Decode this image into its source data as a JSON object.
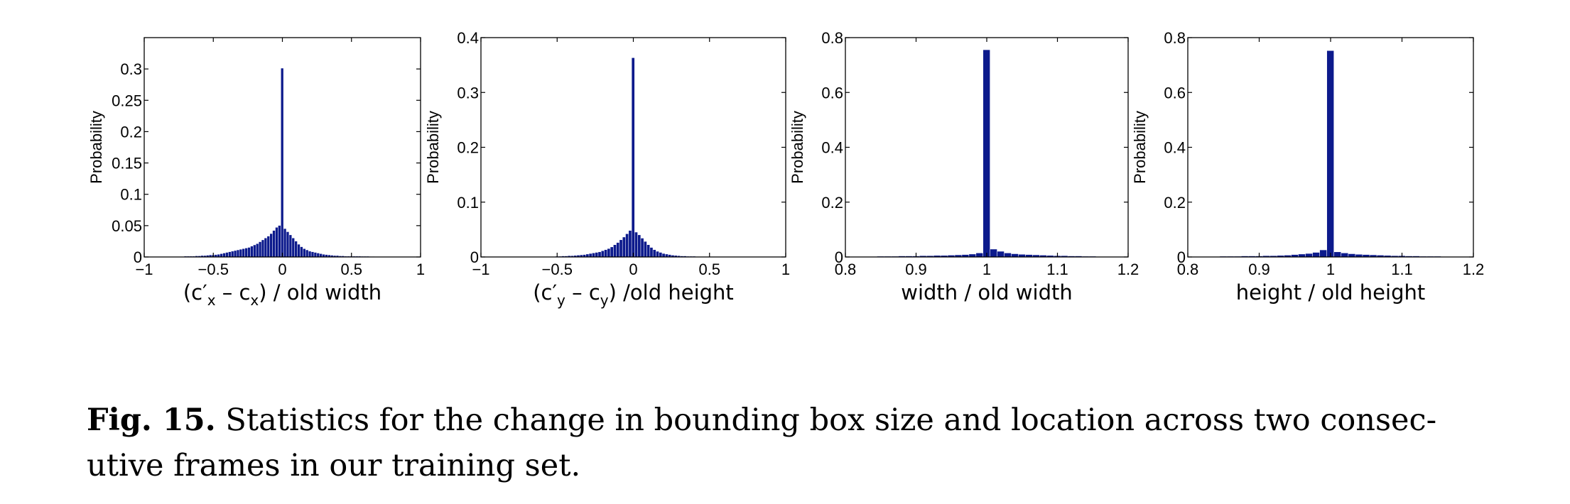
{
  "colors": {
    "bar": "#0c1a8c",
    "axis": "#000000",
    "background": "#ffffff"
  },
  "caption": {
    "label": "Fig. 15.",
    "text": "Statistics for the change in bounding box size and location across two consec-utive frames in our training set."
  },
  "chart_data": [
    {
      "type": "bar",
      "ylabel": "Probability",
      "xlabel": {
        "pre": "(c′",
        "sub1": "x",
        "mid": " – c",
        "sub2": "x",
        "post": ") / old width"
      },
      "xlim": [
        -1,
        1
      ],
      "ylim": [
        0,
        0.35
      ],
      "xticks": [
        "−1",
        "−0.5",
        "0",
        "0.5",
        "1"
      ],
      "xtick_values": [
        -1,
        -0.5,
        0,
        0.5,
        1
      ],
      "yticks": [
        "0",
        "0.05",
        "0.1",
        "0.15",
        "0.2",
        "0.25",
        "0.3"
      ],
      "ytick_values": [
        0,
        0.05,
        0.1,
        0.15,
        0.2,
        0.25,
        0.3
      ],
      "bin_width": 0.02,
      "x": [
        -0.7,
        -0.68,
        -0.66,
        -0.64,
        -0.62,
        -0.6,
        -0.58,
        -0.56,
        -0.54,
        -0.52,
        -0.5,
        -0.48,
        -0.46,
        -0.44,
        -0.42,
        -0.4,
        -0.38,
        -0.36,
        -0.34,
        -0.32,
        -0.3,
        -0.28,
        -0.26,
        -0.24,
        -0.22,
        -0.2,
        -0.18,
        -0.16,
        -0.14,
        -0.12,
        -0.1,
        -0.08,
        -0.06,
        -0.04,
        -0.02,
        0,
        0.02,
        0.04,
        0.06,
        0.08,
        0.1,
        0.12,
        0.14,
        0.16,
        0.18,
        0.2,
        0.22,
        0.24,
        0.26,
        0.28,
        0.3,
        0.32,
        0.34,
        0.36,
        0.38,
        0.4,
        0.42,
        0.44,
        0.46,
        0.48,
        0.5,
        0.52,
        0.54,
        0.56,
        0.58,
        0.6,
        0.62,
        0.64,
        0.66,
        0.68,
        0.7
      ],
      "values": [
        0.001,
        0.001,
        0.001,
        0.001,
        0.0015,
        0.0015,
        0.002,
        0.002,
        0.0025,
        0.003,
        0.003,
        0.0035,
        0.004,
        0.005,
        0.006,
        0.007,
        0.008,
        0.009,
        0.01,
        0.011,
        0.012,
        0.013,
        0.014,
        0.015,
        0.017,
        0.019,
        0.021,
        0.024,
        0.027,
        0.03,
        0.033,
        0.037,
        0.042,
        0.047,
        0.05,
        0.301,
        0.045,
        0.04,
        0.035,
        0.03,
        0.025,
        0.02,
        0.016,
        0.013,
        0.011,
        0.009,
        0.008,
        0.007,
        0.006,
        0.005,
        0.004,
        0.0035,
        0.003,
        0.0025,
        0.002,
        0.002,
        0.0015,
        0.0015,
        0.001,
        0.001,
        0.001,
        0.001,
        0.001,
        0.001,
        0.0008,
        0.0008,
        0.0008,
        0.0006,
        0.0006,
        0.0005,
        0.0005
      ]
    },
    {
      "type": "bar",
      "ylabel": "Probability",
      "xlabel": {
        "pre": "(c′",
        "sub1": "y",
        "mid": " – c",
        "sub2": "y",
        "post": ") /old height"
      },
      "xlim": [
        -1,
        1
      ],
      "ylim": [
        0,
        0.4
      ],
      "xticks": [
        "−1",
        "−0.5",
        "0",
        "0.5",
        "1"
      ],
      "xtick_values": [
        -1,
        -0.5,
        0,
        0.5,
        1
      ],
      "yticks": [
        "0",
        "0.1",
        "0.2",
        "0.3",
        "0.4"
      ],
      "ytick_values": [
        0,
        0.1,
        0.2,
        0.3,
        0.4
      ],
      "bin_width": 0.02,
      "x": [
        -0.5,
        -0.48,
        -0.46,
        -0.44,
        -0.42,
        -0.4,
        -0.38,
        -0.36,
        -0.34,
        -0.32,
        -0.3,
        -0.28,
        -0.26,
        -0.24,
        -0.22,
        -0.2,
        -0.18,
        -0.16,
        -0.14,
        -0.12,
        -0.1,
        -0.08,
        -0.06,
        -0.04,
        -0.02,
        0,
        0.02,
        0.04,
        0.06,
        0.08,
        0.1,
        0.12,
        0.14,
        0.16,
        0.18,
        0.2,
        0.22,
        0.24,
        0.26,
        0.28,
        0.3,
        0.32,
        0.34,
        0.36,
        0.38,
        0.4
      ],
      "values": [
        0.001,
        0.001,
        0.0015,
        0.0015,
        0.002,
        0.002,
        0.0025,
        0.003,
        0.0035,
        0.004,
        0.005,
        0.006,
        0.007,
        0.008,
        0.009,
        0.011,
        0.013,
        0.015,
        0.018,
        0.022,
        0.026,
        0.031,
        0.036,
        0.042,
        0.048,
        0.363,
        0.045,
        0.04,
        0.034,
        0.028,
        0.022,
        0.017,
        0.013,
        0.01,
        0.008,
        0.006,
        0.005,
        0.004,
        0.003,
        0.0025,
        0.002,
        0.0015,
        0.0015,
        0.001,
        0.001,
        0.001
      ]
    },
    {
      "type": "bar",
      "ylabel": "Probability",
      "xlabel": {
        "text": "width / old width"
      },
      "xlim": [
        0.8,
        1.2
      ],
      "ylim": [
        0,
        0.8
      ],
      "xticks": [
        "0.8",
        "0.9",
        "1",
        "1.1",
        "1.2"
      ],
      "xtick_values": [
        0.8,
        0.9,
        1,
        1.1,
        1.2
      ],
      "yticks": [
        "0",
        "0.2",
        "0.4",
        "0.6",
        "0.8"
      ],
      "ytick_values": [
        0,
        0.2,
        0.4,
        0.6,
        0.8
      ],
      "bin_width": 0.01,
      "x": [
        0.85,
        0.86,
        0.87,
        0.88,
        0.89,
        0.9,
        0.91,
        0.92,
        0.93,
        0.94,
        0.95,
        0.96,
        0.97,
        0.98,
        0.99,
        1.0,
        1.01,
        1.02,
        1.03,
        1.04,
        1.05,
        1.06,
        1.07,
        1.08,
        1.09,
        1.1,
        1.11,
        1.12,
        1.13,
        1.14,
        1.15
      ],
      "values": [
        0.002,
        0.002,
        0.002,
        0.003,
        0.003,
        0.003,
        0.004,
        0.004,
        0.005,
        0.005,
        0.006,
        0.007,
        0.008,
        0.01,
        0.014,
        0.755,
        0.028,
        0.02,
        0.014,
        0.011,
        0.009,
        0.008,
        0.007,
        0.006,
        0.005,
        0.004,
        0.004,
        0.003,
        0.003,
        0.002,
        0.002
      ]
    },
    {
      "type": "bar",
      "ylabel": "Probability",
      "xlabel": {
        "text": "height / old height"
      },
      "xlim": [
        0.8,
        1.2
      ],
      "ylim": [
        0,
        0.8
      ],
      "xticks": [
        "0.8",
        "0.9",
        "1",
        "1.1",
        "1.2"
      ],
      "xtick_values": [
        0.8,
        0.9,
        1,
        1.1,
        1.2
      ],
      "yticks": [
        "0",
        "0.2",
        "0.4",
        "0.6",
        "0.8"
      ],
      "ytick_values": [
        0,
        0.2,
        0.4,
        0.6,
        0.8
      ],
      "bin_width": 0.01,
      "x": [
        0.85,
        0.86,
        0.87,
        0.88,
        0.89,
        0.9,
        0.91,
        0.92,
        0.93,
        0.94,
        0.95,
        0.96,
        0.97,
        0.98,
        0.99,
        1.0,
        1.01,
        1.02,
        1.03,
        1.04,
        1.05,
        1.06,
        1.07,
        1.08,
        1.09,
        1.1,
        1.11,
        1.12,
        1.13,
        1.14,
        1.15
      ],
      "values": [
        0.002,
        0.002,
        0.002,
        0.003,
        0.003,
        0.003,
        0.004,
        0.004,
        0.005,
        0.006,
        0.008,
        0.01,
        0.012,
        0.016,
        0.025,
        0.752,
        0.018,
        0.014,
        0.011,
        0.009,
        0.008,
        0.007,
        0.006,
        0.005,
        0.004,
        0.004,
        0.003,
        0.003,
        0.002,
        0.002,
        0.002
      ]
    }
  ]
}
